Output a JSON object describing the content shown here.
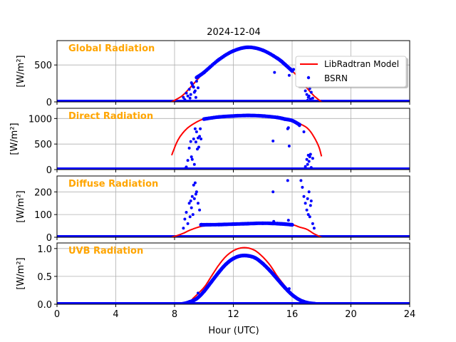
{
  "chart_data": {
    "type": "line",
    "title": "2024-12-04",
    "xlabel": "Hour (UTC)",
    "xlim": [
      0,
      24
    ],
    "xticks": [
      0,
      4,
      8,
      12,
      16,
      20,
      24
    ],
    "grid": true,
    "legend": {
      "placement": "top-right of first panel",
      "entries": [
        {
          "label": "LibRadtran Model",
          "color": "#ff0000",
          "style": "line"
        },
        {
          "label": "BSRN",
          "color": "#0000ff",
          "style": "dots"
        }
      ]
    },
    "colors": {
      "model": "#ff0000",
      "bsrn": "#0000ff",
      "panel_title": "#ffa500",
      "grid": "#b0b0b0"
    },
    "panels": [
      {
        "title": "Global Radiation",
        "ylabel": "[W/m²]",
        "ylim": [
          0,
          830
        ],
        "yticks": [
          0,
          500
        ],
        "model": {
          "x": [
            7.8,
            8.5,
            9,
            9.5,
            10,
            11,
            12,
            13,
            14,
            15,
            16,
            16.5,
            17,
            17.5,
            18
          ],
          "y": [
            0,
            80,
            180,
            290,
            400,
            570,
            690,
            740,
            700,
            590,
            420,
            310,
            190,
            80,
            0
          ]
        },
        "bsrn_clear": {
          "x": [
            9.5,
            10,
            11,
            12,
            13,
            14,
            15,
            15.5,
            16
          ],
          "y": [
            330,
            400,
            570,
            690,
            740,
            700,
            590,
            510,
            420
          ]
        },
        "bsrn_scatter": {
          "x": [
            8.6,
            8.8,
            9,
            9.1,
            9.2,
            9.3,
            9.4,
            9.5,
            8.9,
            9.05,
            9.25,
            9.35,
            9.45,
            9.55,
            9.15,
            8.7,
            9.6,
            14.8,
            15.8,
            16.1,
            16.9,
            17,
            17.1,
            17.2,
            17.3,
            17.4,
            17.05,
            17.15,
            17.25
          ],
          "y": [
            60,
            120,
            170,
            100,
            240,
            200,
            150,
            280,
            80,
            50,
            210,
            130,
            60,
            330,
            260,
            30,
            190,
            400,
            360,
            440,
            150,
            100,
            60,
            180,
            130,
            50,
            20,
            80,
            40
          ]
        }
      },
      {
        "title": "Direct Radiation",
        "ylabel": "[W/m²]",
        "ylim": [
          0,
          1200
        ],
        "yticks": [
          0,
          500,
          1000
        ],
        "model": {
          "x": [
            7.8,
            8.2,
            8.6,
            9,
            9.5,
            10,
            11,
            12,
            13,
            14,
            15,
            16,
            16.5,
            17,
            17.4,
            17.8,
            18
          ],
          "y": [
            280,
            560,
            730,
            840,
            930,
            990,
            1030,
            1050,
            1060,
            1050,
            1020,
            960,
            900,
            820,
            680,
            460,
            260
          ]
        },
        "bsrn_clear": {
          "x": [
            10,
            11,
            12,
            13,
            14,
            15,
            15.5,
            16,
            16.5
          ],
          "y": [
            990,
            1030,
            1050,
            1060,
            1050,
            1020,
            990,
            960,
            880
          ]
        },
        "bsrn_scatter": {
          "x": [
            8.7,
            8.9,
            9,
            9.1,
            9.2,
            9.3,
            9.4,
            9.5,
            9.6,
            9.7,
            9.8,
            9.75,
            9.55,
            9.65,
            9.35,
            9.15,
            8.8,
            9.45,
            14.7,
            15.7,
            15.75,
            15.8,
            16.9,
            17,
            17.1,
            17.2,
            17.3,
            17.05,
            17.15,
            17.25,
            17.4,
            16.5,
            16.8
          ],
          "y": [
            20,
            180,
            420,
            550,
            200,
            600,
            800,
            740,
            620,
            650,
            600,
            800,
            400,
            440,
            100,
            250,
            50,
            540,
            560,
            800,
            820,
            460,
            60,
            200,
            280,
            250,
            40,
            100,
            160,
            300,
            220,
            860,
            740
          ]
        }
      },
      {
        "title": "Diffuse Radiation",
        "ylabel": "[W/m²]",
        "ylim": [
          0,
          270
        ],
        "yticks": [
          0,
          100,
          200
        ],
        "model": {
          "x": [
            7.8,
            8.5,
            9,
            9.5,
            10,
            11,
            12,
            13,
            14,
            15,
            16,
            16.5,
            17,
            17.5,
            18
          ],
          "y": [
            0,
            15,
            30,
            42,
            50,
            55,
            58,
            60,
            62,
            60,
            55,
            45,
            35,
            15,
            0
          ]
        },
        "bsrn_clear": {
          "x": [
            9.8,
            10,
            11,
            12,
            13,
            14,
            15,
            15.5,
            16
          ],
          "y": [
            55,
            55,
            56,
            58,
            60,
            62,
            60,
            58,
            55
          ]
        },
        "bsrn_scatter": {
          "x": [
            8.6,
            8.7,
            8.8,
            8.9,
            9,
            9.1,
            9.2,
            9.3,
            9.4,
            9.5,
            9.6,
            9.7,
            9.25,
            9.35,
            9.15,
            9.05,
            9.45,
            14.7,
            14.75,
            15.7,
            15.75,
            16.6,
            16.7,
            16.8,
            16.9,
            17,
            17.1,
            17.2,
            17.3,
            17.4,
            17.5,
            17.05,
            17.15,
            17.25
          ],
          "y": [
            40,
            80,
            110,
            60,
            150,
            160,
            180,
            230,
            240,
            200,
            150,
            120,
            100,
            170,
            130,
            90,
            190,
            200,
            70,
            250,
            75,
            250,
            220,
            180,
            150,
            120,
            100,
            90,
            160,
            60,
            40,
            170,
            200,
            140
          ]
        }
      },
      {
        "title": "UVB Radiation",
        "ylabel": "[W/m²]",
        "ylim": [
          0,
          1.1
        ],
        "yticks": [
          0.0,
          0.5,
          1.0
        ],
        "model": {
          "x": [
            9.2,
            10,
            10.5,
            11,
            11.5,
            12,
            12.5,
            13,
            13.5,
            14,
            14.5,
            15,
            15.5,
            16,
            16.5
          ],
          "y": [
            0.09,
            0.3,
            0.5,
            0.7,
            0.86,
            0.96,
            1.01,
            1.01,
            0.96,
            0.85,
            0.7,
            0.5,
            0.33,
            0.17,
            0.06
          ]
        },
        "bsrn_clear": {
          "x": [
            8.2,
            8.6,
            9,
            9.5,
            10,
            10.5,
            11,
            11.5,
            12,
            12.5,
            13,
            13.5,
            14,
            14.5,
            15,
            15.5,
            16,
            16.5,
            17,
            17.5,
            17.8
          ],
          "y": [
            0,
            0.01,
            0.04,
            0.1,
            0.23,
            0.4,
            0.57,
            0.72,
            0.82,
            0.87,
            0.87,
            0.83,
            0.73,
            0.6,
            0.45,
            0.3,
            0.17,
            0.08,
            0.03,
            0.01,
            0
          ]
        },
        "bsrn_scatter": {
          "x": [
            9.3,
            9.6,
            14.9,
            15.8,
            16.8
          ],
          "y": [
            0.07,
            0.2,
            0.48,
            0.28,
            0.05
          ]
        }
      }
    ]
  }
}
